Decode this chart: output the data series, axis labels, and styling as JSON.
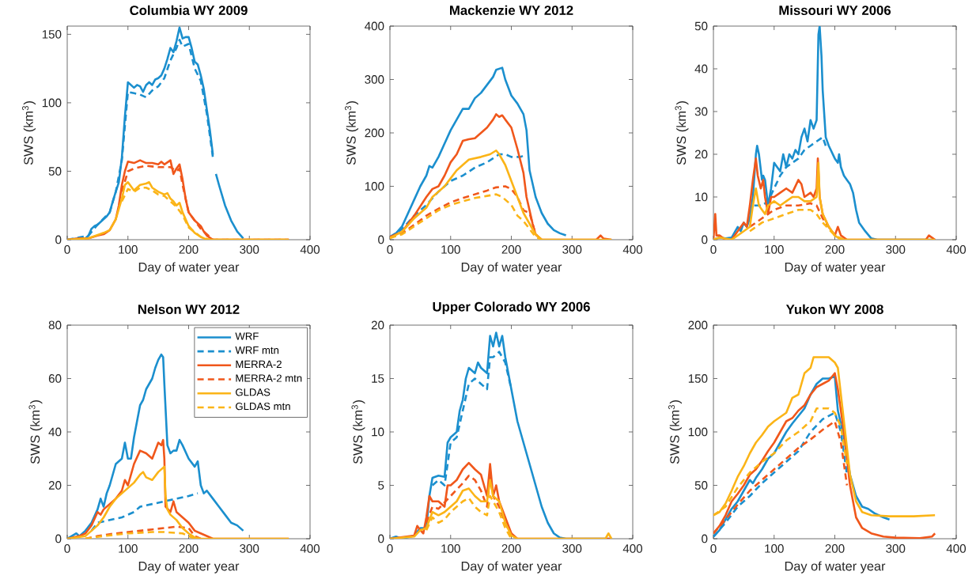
{
  "chart_data": [
    {
      "type": "line",
      "title": "Columbia WY 2009",
      "xlabel": "Day of water year",
      "ylabel": "SWS (km$^{3}$)",
      "xlim": [
        0,
        400
      ],
      "ylim": [
        0,
        156
      ],
      "xticks": [
        0,
        100,
        200,
        300,
        400
      ],
      "yticks": [
        0,
        50,
        100,
        150
      ],
      "series": [
        {
          "color": "#1b8fce",
          "line_style": "solid",
          "x": [
            0,
            20,
            30,
            35,
            40,
            45,
            50,
            55,
            60,
            65,
            70,
            75,
            80,
            85,
            90,
            95,
            100,
            105,
            110,
            115,
            120,
            125,
            130,
            135,
            140,
            145,
            150,
            155,
            160,
            165,
            170,
            175,
            180,
            185,
            190,
            195,
            200,
            205,
            210,
            215,
            220,
            225,
            230,
            235,
            240,
            243,
            245,
            250,
            260,
            270,
            280,
            290
          ],
          "values": [
            0,
            1,
            1,
            3,
            8,
            10,
            11,
            13,
            15,
            17,
            20,
            28,
            35,
            42,
            60,
            90,
            115,
            113,
            111,
            113,
            112,
            108,
            113,
            115,
            113,
            117,
            118,
            120,
            125,
            132,
            140,
            137,
            145,
            155,
            147,
            148,
            148,
            140,
            130,
            128,
            120,
            110,
            95,
            80,
            62,
            null,
            48,
            40,
            25,
            14,
            6,
            1
          ]
        },
        {
          "color": "#1b8fce",
          "line_style": "dashed",
          "x": [
            0,
            35,
            50,
            70,
            80,
            90,
            100,
            110,
            120,
            130,
            140,
            150,
            160,
            170,
            180,
            185,
            190,
            200,
            210,
            220,
            230,
            240
          ],
          "values": [
            0,
            3,
            11,
            20,
            35,
            58,
            108,
            107,
            106,
            104,
            109,
            112,
            118,
            131,
            140,
            146,
            141,
            143,
            125,
            116,
            92,
            60
          ]
        },
        {
          "color": "#f0571b",
          "line_style": "solid",
          "x": [
            0,
            20,
            35,
            50,
            60,
            70,
            80,
            85,
            90,
            95,
            100,
            110,
            120,
            130,
            140,
            150,
            155,
            160,
            170,
            175,
            180,
            185,
            190,
            195,
            200,
            210,
            220,
            225,
            230,
            240,
            300,
            365
          ],
          "values": [
            0,
            1,
            1,
            3,
            4,
            7,
            15,
            25,
            40,
            50,
            57,
            56,
            58,
            56,
            56,
            55,
            57,
            55,
            58,
            48,
            52,
            55,
            44,
            30,
            20,
            14,
            10,
            6,
            3,
            0,
            0,
            0
          ]
        },
        {
          "color": "#f0571b",
          "line_style": "dashed",
          "x": [
            90,
            100,
            110,
            130,
            150,
            170,
            180,
            185,
            190,
            200,
            220,
            240,
            365
          ],
          "values": [
            35,
            50,
            52,
            54,
            53,
            53,
            50,
            52,
            40,
            20,
            8,
            0,
            0
          ]
        },
        {
          "color": "#fbb417",
          "line_style": "solid",
          "x": [
            0,
            35,
            60,
            70,
            80,
            90,
            95,
            100,
            110,
            120,
            130,
            135,
            140,
            150,
            160,
            165,
            170,
            175,
            180,
            185,
            190,
            200,
            210,
            220,
            230,
            365
          ],
          "values": [
            0,
            1,
            5,
            7,
            15,
            30,
            40,
            42,
            36,
            40,
            41,
            42,
            38,
            35,
            33,
            34,
            30,
            28,
            25,
            27,
            20,
            10,
            5,
            2,
            0,
            0
          ]
        },
        {
          "color": "#fbb417",
          "line_style": "dashed",
          "x": [
            90,
            100,
            110,
            120,
            130,
            140,
            150,
            160,
            170,
            180,
            190,
            200,
            220,
            235,
            365
          ],
          "values": [
            28,
            37,
            35,
            38,
            38,
            36,
            33,
            32,
            28,
            24,
            18,
            9,
            2,
            0,
            0
          ]
        }
      ]
    },
    {
      "type": "line",
      "title": "Mackenzie WY 2012",
      "xlabel": "Day of water year",
      "ylabel": "SWS (km$^{3}$)",
      "xlim": [
        0,
        400
      ],
      "ylim": [
        0,
        400
      ],
      "xticks": [
        0,
        100,
        200,
        300,
        400
      ],
      "yticks": [
        0,
        100,
        200,
        300,
        400
      ],
      "series": [
        {
          "color": "#1b8fce",
          "line_style": "solid",
          "x": [
            0,
            10,
            20,
            30,
            40,
            50,
            60,
            65,
            70,
            80,
            90,
            100,
            110,
            120,
            130,
            140,
            150,
            160,
            170,
            175,
            185,
            190,
            200,
            210,
            220,
            225,
            230,
            240,
            250,
            260,
            270,
            280,
            290
          ],
          "values": [
            5,
            12,
            25,
            50,
            75,
            100,
            120,
            138,
            135,
            155,
            180,
            205,
            225,
            245,
            245,
            265,
            275,
            290,
            305,
            318,
            322,
            300,
            270,
            255,
            235,
            205,
            130,
            80,
            50,
            30,
            18,
            12,
            8
          ]
        },
        {
          "color": "#1b8fce",
          "line_style": "dashed",
          "x": [
            0,
            20,
            40,
            60,
            80,
            100,
            120,
            140,
            160,
            180,
            190,
            200,
            215,
            225
          ],
          "values": [
            5,
            20,
            45,
            65,
            90,
            110,
            120,
            135,
            145,
            160,
            160,
            155,
            155,
            160
          ]
        },
        {
          "color": "#f0571b",
          "line_style": "solid",
          "x": [
            0,
            20,
            40,
            60,
            70,
            80,
            90,
            100,
            110,
            120,
            130,
            140,
            150,
            160,
            170,
            175,
            180,
            185,
            190,
            200,
            210,
            220,
            225,
            230,
            235,
            240,
            250,
            340,
            347,
            352,
            365
          ],
          "values": [
            5,
            15,
            45,
            80,
            95,
            100,
            120,
            145,
            160,
            185,
            188,
            190,
            200,
            210,
            225,
            235,
            230,
            233,
            225,
            210,
            170,
            125,
            80,
            55,
            30,
            10,
            0,
            0,
            8,
            2,
            0
          ]
        },
        {
          "color": "#f0571b",
          "line_style": "dashed",
          "x": [
            0,
            20,
            40,
            60,
            80,
            100,
            120,
            140,
            160,
            175,
            190,
            200,
            210,
            220,
            230,
            240,
            250
          ],
          "values": [
            5,
            12,
            28,
            45,
            58,
            70,
            78,
            85,
            92,
            98,
            100,
            95,
            80,
            55,
            50,
            10,
            0
          ]
        },
        {
          "color": "#fbb417",
          "line_style": "solid",
          "x": [
            0,
            20,
            40,
            60,
            70,
            90,
            100,
            110,
            120,
            130,
            150,
            165,
            175,
            180,
            190,
            200,
            210,
            220,
            230,
            240,
            250,
            365
          ],
          "values": [
            3,
            15,
            40,
            60,
            80,
            100,
            115,
            130,
            140,
            150,
            155,
            160,
            167,
            160,
            140,
            110,
            80,
            50,
            30,
            10,
            0,
            0
          ]
        },
        {
          "color": "#fbb417",
          "line_style": "dashed",
          "x": [
            0,
            20,
            40,
            60,
            80,
            100,
            120,
            140,
            160,
            175,
            185,
            200,
            210,
            220,
            230,
            240,
            250
          ],
          "values": [
            3,
            10,
            25,
            40,
            55,
            65,
            72,
            78,
            82,
            85,
            80,
            65,
            45,
            35,
            20,
            5,
            0
          ]
        }
      ]
    },
    {
      "type": "line",
      "title": "Missouri WY 2006",
      "xlabel": "Day of water year",
      "ylabel": "SWS (km$^{3}$)",
      "xlim": [
        0,
        400
      ],
      "ylim": [
        0,
        50
      ],
      "xticks": [
        0,
        100,
        200,
        300,
        400
      ],
      "yticks": [
        0,
        10,
        20,
        30,
        40,
        50
      ],
      "series": [
        {
          "color": "#1b8fce",
          "line_style": "solid",
          "x": [
            0,
            10,
            20,
            30,
            40,
            45,
            50,
            55,
            60,
            65,
            70,
            72,
            75,
            80,
            82,
            85,
            90,
            95,
            100,
            105,
            110,
            115,
            120,
            125,
            130,
            135,
            140,
            145,
            150,
            155,
            160,
            165,
            170,
            173,
            175,
            178,
            180,
            185,
            190,
            200,
            205,
            207,
            210,
            215,
            220,
            225,
            230,
            235,
            240,
            250,
            260,
            270,
            365
          ],
          "values": [
            0,
            0.5,
            0.3,
            0.5,
            3,
            2,
            4,
            3,
            5,
            10,
            20,
            22,
            20,
            14,
            15,
            14,
            8,
            12,
            18,
            17,
            16,
            20,
            17,
            20,
            19,
            21,
            20,
            24,
            26,
            23,
            28,
            26,
            28,
            48,
            50,
            43,
            35,
            24,
            22,
            19,
            18,
            20,
            17,
            15,
            14,
            13,
            11,
            7,
            4,
            2,
            0.3,
            0,
            0
          ]
        },
        {
          "color": "#1b8fce",
          "line_style": "dashed",
          "x": [
            60,
            65,
            80,
            90,
            100,
            110,
            120,
            130,
            140,
            150,
            160,
            170,
            180,
            185
          ],
          "values": [
            6,
            8,
            8,
            9,
            12,
            15,
            17,
            18,
            19,
            21,
            22,
            23,
            24,
            22
          ]
        },
        {
          "color": "#f0571b",
          "line_style": "solid",
          "x": [
            0,
            3,
            5,
            10,
            20,
            30,
            40,
            50,
            55,
            60,
            65,
            70,
            73,
            78,
            82,
            85,
            90,
            95,
            100,
            110,
            120,
            130,
            140,
            145,
            150,
            160,
            165,
            170,
            172,
            175,
            180,
            190,
            200,
            205,
            210,
            220,
            350,
            355,
            365
          ],
          "values": [
            0,
            6,
            1,
            1,
            0,
            0,
            2,
            4,
            3,
            8,
            14,
            19,
            15,
            12,
            14,
            10,
            6,
            10,
            10,
            11,
            12,
            11,
            14,
            13,
            10,
            11,
            10,
            12,
            19,
            10,
            6,
            3,
            1,
            3,
            1,
            0,
            0,
            1,
            0
          ]
        },
        {
          "color": "#f0571b",
          "line_style": "dashed",
          "x": [
            60,
            80,
            100,
            120,
            140,
            160,
            170,
            180,
            200
          ],
          "values": [
            3,
            5,
            7,
            8,
            8,
            8.5,
            8,
            5,
            1
          ]
        },
        {
          "color": "#fbb417",
          "line_style": "solid",
          "x": [
            0,
            10,
            30,
            50,
            60,
            65,
            70,
            75,
            80,
            85,
            90,
            100,
            110,
            120,
            130,
            140,
            150,
            160,
            170,
            173,
            175,
            180,
            190,
            200,
            210,
            365
          ],
          "values": [
            0,
            0.5,
            0,
            2,
            3,
            8,
            12,
            8,
            7,
            6,
            8,
            9,
            8,
            9,
            10,
            10,
            9,
            9,
            10,
            18,
            10,
            6,
            3,
            1,
            0,
            0
          ]
        },
        {
          "color": "#fbb417",
          "line_style": "dashed",
          "x": [
            60,
            80,
            100,
            120,
            140,
            160,
            170,
            180,
            200,
            215
          ],
          "values": [
            2,
            4,
            5,
            6,
            7,
            7,
            6,
            4,
            1,
            0
          ]
        }
      ]
    },
    {
      "type": "line",
      "title": "Nelson WY 2012",
      "xlabel": "Day of water year",
      "ylabel": "SWS (km$^{3}$)",
      "xlim": [
        0,
        400
      ],
      "ylim": [
        0,
        80
      ],
      "xticks": [
        0,
        100,
        200,
        300,
        400
      ],
      "yticks": [
        0,
        20,
        40,
        60,
        80
      ],
      "legend": "top right",
      "series": [
        {
          "name": "WRF",
          "color": "#1b8fce",
          "line_style": "solid",
          "x": [
            0,
            15,
            20,
            30,
            40,
            50,
            55,
            60,
            65,
            70,
            80,
            90,
            95,
            100,
            105,
            110,
            115,
            120,
            125,
            130,
            140,
            145,
            150,
            155,
            158,
            160,
            165,
            170,
            175,
            180,
            185,
            190,
            200,
            210,
            215,
            220,
            225,
            230,
            240,
            250,
            260,
            270,
            280,
            290
          ],
          "values": [
            0,
            2,
            1,
            3,
            6,
            11,
            15,
            12,
            17,
            20,
            28,
            30,
            36,
            30,
            30,
            38,
            44,
            50,
            52,
            56,
            60,
            64,
            67,
            69,
            68,
            58,
            35,
            32,
            33,
            33,
            37,
            35,
            30,
            27,
            29,
            20,
            17,
            18,
            15,
            12,
            9,
            6,
            5,
            3
          ]
        },
        {
          "name": "WRF mtn",
          "color": "#1b8fce",
          "line_style": "dashed",
          "x": [
            40,
            50,
            70,
            90,
            110,
            120,
            140,
            160,
            180,
            200,
            215
          ],
          "values": [
            3,
            6,
            7,
            8,
            10,
            12,
            13,
            14,
            15,
            16,
            17
          ]
        },
        {
          "name": "MERRA-2",
          "color": "#f0571b",
          "line_style": "solid",
          "x": [
            0,
            20,
            30,
            40,
            50,
            55,
            60,
            70,
            80,
            90,
            95,
            100,
            110,
            120,
            130,
            140,
            150,
            155,
            158,
            160,
            162,
            170,
            175,
            180,
            190,
            200,
            210,
            220,
            230,
            240,
            365
          ],
          "values": [
            0,
            1,
            2,
            5,
            10,
            9,
            11,
            13,
            15,
            18,
            22,
            20,
            28,
            33,
            32,
            30,
            36,
            35,
            37,
            30,
            12,
            10,
            14,
            10,
            8,
            6,
            3,
            2,
            1,
            0,
            0
          ]
        },
        {
          "name": "MERRA-2 mtn",
          "color": "#f0571b",
          "line_style": "dashed",
          "x": [
            30,
            50,
            80,
            100,
            120,
            140,
            160,
            180,
            200,
            210,
            220
          ],
          "values": [
            0,
            1,
            2,
            2.5,
            3,
            3.5,
            4,
            4.5,
            4,
            1,
            0
          ]
        },
        {
          "name": "GLDAS",
          "color": "#fbb417",
          "line_style": "solid",
          "x": [
            0,
            30,
            50,
            60,
            70,
            80,
            90,
            100,
            110,
            120,
            125,
            130,
            140,
            150,
            160,
            162,
            165,
            170,
            180,
            190,
            200,
            210,
            220,
            365
          ],
          "values": [
            0,
            1,
            5,
            8,
            12,
            15,
            17,
            19,
            21,
            24,
            25,
            23,
            22,
            25,
            27,
            16,
            11,
            9,
            7,
            4,
            2,
            0.5,
            0,
            0
          ]
        },
        {
          "name": "GLDAS mtn",
          "color": "#fbb417",
          "line_style": "dashed",
          "x": [
            30,
            60,
            100,
            140,
            160,
            190,
            200,
            210
          ],
          "values": [
            0,
            1,
            2,
            2.5,
            2.5,
            2,
            1,
            0
          ]
        }
      ]
    },
    {
      "type": "line",
      "title": "Upper Colorado WY 2006",
      "xlabel": "Day of water year",
      "ylabel": "SWS (km$^{3}$)",
      "xlim": [
        0,
        400
      ],
      "ylim": [
        0,
        20
      ],
      "xticks": [
        0,
        100,
        200,
        300,
        400
      ],
      "yticks": [
        0,
        5,
        10,
        15,
        20
      ],
      "series": [
        {
          "color": "#1b8fce",
          "line_style": "solid",
          "x": [
            0,
            10,
            20,
            40,
            50,
            60,
            65,
            70,
            80,
            90,
            95,
            100,
            110,
            115,
            120,
            125,
            130,
            140,
            145,
            150,
            160,
            165,
            170,
            175,
            180,
            185,
            190,
            200,
            210,
            220,
            225,
            230,
            240,
            250,
            260,
            270,
            280,
            290,
            365
          ],
          "values": [
            0,
            0.2,
            0,
            0.3,
            1,
            1,
            4,
            5.7,
            5.9,
            5.8,
            9,
            9.5,
            10,
            12,
            13,
            15,
            16,
            15.5,
            16.5,
            16,
            15.5,
            19,
            18,
            19.3,
            18,
            19,
            17,
            14,
            11,
            9,
            8,
            7,
            5,
            3,
            1.5,
            0.5,
            0.1,
            0,
            0
          ]
        },
        {
          "color": "#1b8fce",
          "line_style": "dashed",
          "x": [
            70,
            80,
            90,
            100,
            110,
            120,
            130,
            140,
            150,
            160,
            165,
            170,
            180,
            190,
            200
          ],
          "values": [
            5,
            5.5,
            5,
            9,
            9.5,
            12,
            14.5,
            15,
            14.5,
            14,
            17,
            17,
            17.5,
            16.5,
            14
          ]
        },
        {
          "color": "#f0571b",
          "line_style": "solid",
          "x": [
            0,
            40,
            45,
            50,
            55,
            60,
            65,
            70,
            80,
            90,
            95,
            100,
            110,
            120,
            130,
            140,
            150,
            155,
            160,
            165,
            170,
            175,
            180,
            190,
            200,
            210,
            365
          ],
          "values": [
            0,
            0.3,
            1.2,
            0.8,
            0.5,
            2,
            4,
            3.5,
            3.5,
            3,
            5,
            5,
            5.5,
            6.5,
            7.1,
            6.5,
            6,
            5,
            4,
            7,
            4,
            5,
            3.5,
            2,
            0.5,
            0,
            0
          ]
        },
        {
          "color": "#f0571b",
          "line_style": "dashed",
          "x": [
            60,
            70,
            80,
            100,
            120,
            130,
            140,
            150,
            160,
            165,
            170,
            180,
            190,
            200
          ],
          "values": [
            1.5,
            3,
            2.8,
            4,
            5.2,
            5.9,
            5.5,
            4.5,
            3,
            6,
            4,
            3,
            1.5,
            0.3
          ]
        },
        {
          "color": "#fbb417",
          "line_style": "solid",
          "x": [
            0,
            40,
            50,
            60,
            70,
            80,
            90,
            100,
            110,
            120,
            130,
            140,
            150,
            160,
            165,
            170,
            180,
            190,
            200,
            210,
            355,
            360,
            365
          ],
          "values": [
            0,
            0.2,
            0.8,
            1,
            2.5,
            2.2,
            2.5,
            3,
            3.5,
            4.5,
            4.7,
            4,
            3.5,
            3.5,
            5.5,
            4,
            3.5,
            1.5,
            0.3,
            0,
            0,
            0.5,
            0
          ]
        },
        {
          "color": "#fbb417",
          "line_style": "dashed",
          "x": [
            60,
            70,
            80,
            90,
            100,
            120,
            130,
            140,
            150,
            160,
            165,
            170,
            180,
            190,
            200
          ],
          "values": [
            0.8,
            2,
            1.5,
            1.8,
            2.5,
            3.5,
            3.8,
            3,
            2.5,
            2.2,
            4,
            3.5,
            2.5,
            1,
            0
          ]
        }
      ]
    },
    {
      "type": "line",
      "title": "Yukon WY 2008",
      "xlabel": "Day of water year",
      "ylabel": "SWS (km$^{3}$)",
      "xlim": [
        0,
        400
      ],
      "ylim": [
        0,
        200
      ],
      "xticks": [
        0,
        100,
        200,
        300,
        400
      ],
      "yticks": [
        0,
        50,
        100,
        150,
        200
      ],
      "series": [
        {
          "color": "#1b8fce",
          "line_style": "solid",
          "x": [
            0,
            10,
            20,
            30,
            40,
            50,
            60,
            65,
            70,
            80,
            90,
            100,
            110,
            120,
            130,
            140,
            150,
            160,
            170,
            180,
            190,
            200,
            205,
            215,
            225,
            235,
            245,
            255,
            265,
            280,
            290
          ],
          "values": [
            2,
            8,
            18,
            28,
            35,
            45,
            55,
            52,
            57,
            65,
            75,
            80,
            90,
            100,
            108,
            115,
            122,
            135,
            145,
            150,
            150,
            152,
            120,
            95,
            60,
            40,
            30,
            28,
            24,
            20,
            18
          ]
        },
        {
          "color": "#1b8fce",
          "line_style": "dashed",
          "x": [
            0,
            20,
            40,
            60,
            80,
            100,
            120,
            140,
            160,
            180,
            200,
            210,
            220
          ],
          "values": [
            2,
            15,
            30,
            40,
            52,
            62,
            72,
            82,
            100,
            112,
            118,
            100,
            60
          ]
        },
        {
          "color": "#f0571b",
          "line_style": "solid",
          "x": [
            0,
            10,
            20,
            30,
            40,
            50,
            60,
            70,
            80,
            90,
            100,
            110,
            120,
            130,
            140,
            150,
            160,
            170,
            180,
            190,
            200,
            205,
            215,
            225,
            235,
            245,
            260,
            280,
            300,
            340,
            360,
            365
          ],
          "values": [
            5,
            12,
            22,
            35,
            42,
            50,
            60,
            65,
            73,
            82,
            90,
            100,
            110,
            113,
            120,
            125,
            135,
            142,
            145,
            148,
            155,
            140,
            100,
            50,
            20,
            10,
            5,
            2,
            1,
            0.5,
            2,
            5
          ]
        },
        {
          "color": "#f0571b",
          "line_style": "dashed",
          "x": [
            0,
            20,
            40,
            60,
            80,
            100,
            120,
            140,
            160,
            180,
            200,
            210,
            220
          ],
          "values": [
            5,
            18,
            32,
            45,
            55,
            65,
            75,
            85,
            93,
            102,
            110,
            90,
            50
          ]
        },
        {
          "color": "#fbb417",
          "line_style": "solid",
          "x": [
            0,
            10,
            20,
            30,
            40,
            50,
            60,
            70,
            80,
            90,
            100,
            120,
            130,
            140,
            150,
            160,
            165,
            180,
            190,
            200,
            205,
            215,
            225,
            235,
            245,
            260,
            290,
            330,
            365
          ],
          "values": [
            22,
            25,
            33,
            45,
            58,
            68,
            80,
            90,
            97,
            105,
            110,
            118,
            132,
            135,
            155,
            160,
            170,
            170,
            170,
            165,
            160,
            110,
            60,
            35,
            25,
            22,
            21,
            21,
            22
          ]
        },
        {
          "color": "#fbb417",
          "line_style": "dashed",
          "x": [
            0,
            20,
            40,
            60,
            80,
            100,
            120,
            140,
            160,
            170,
            190,
            200,
            210,
            220
          ],
          "values": [
            22,
            30,
            48,
            62,
            72,
            80,
            92,
            100,
            110,
            122,
            122,
            118,
            105,
            70
          ]
        }
      ]
    }
  ]
}
